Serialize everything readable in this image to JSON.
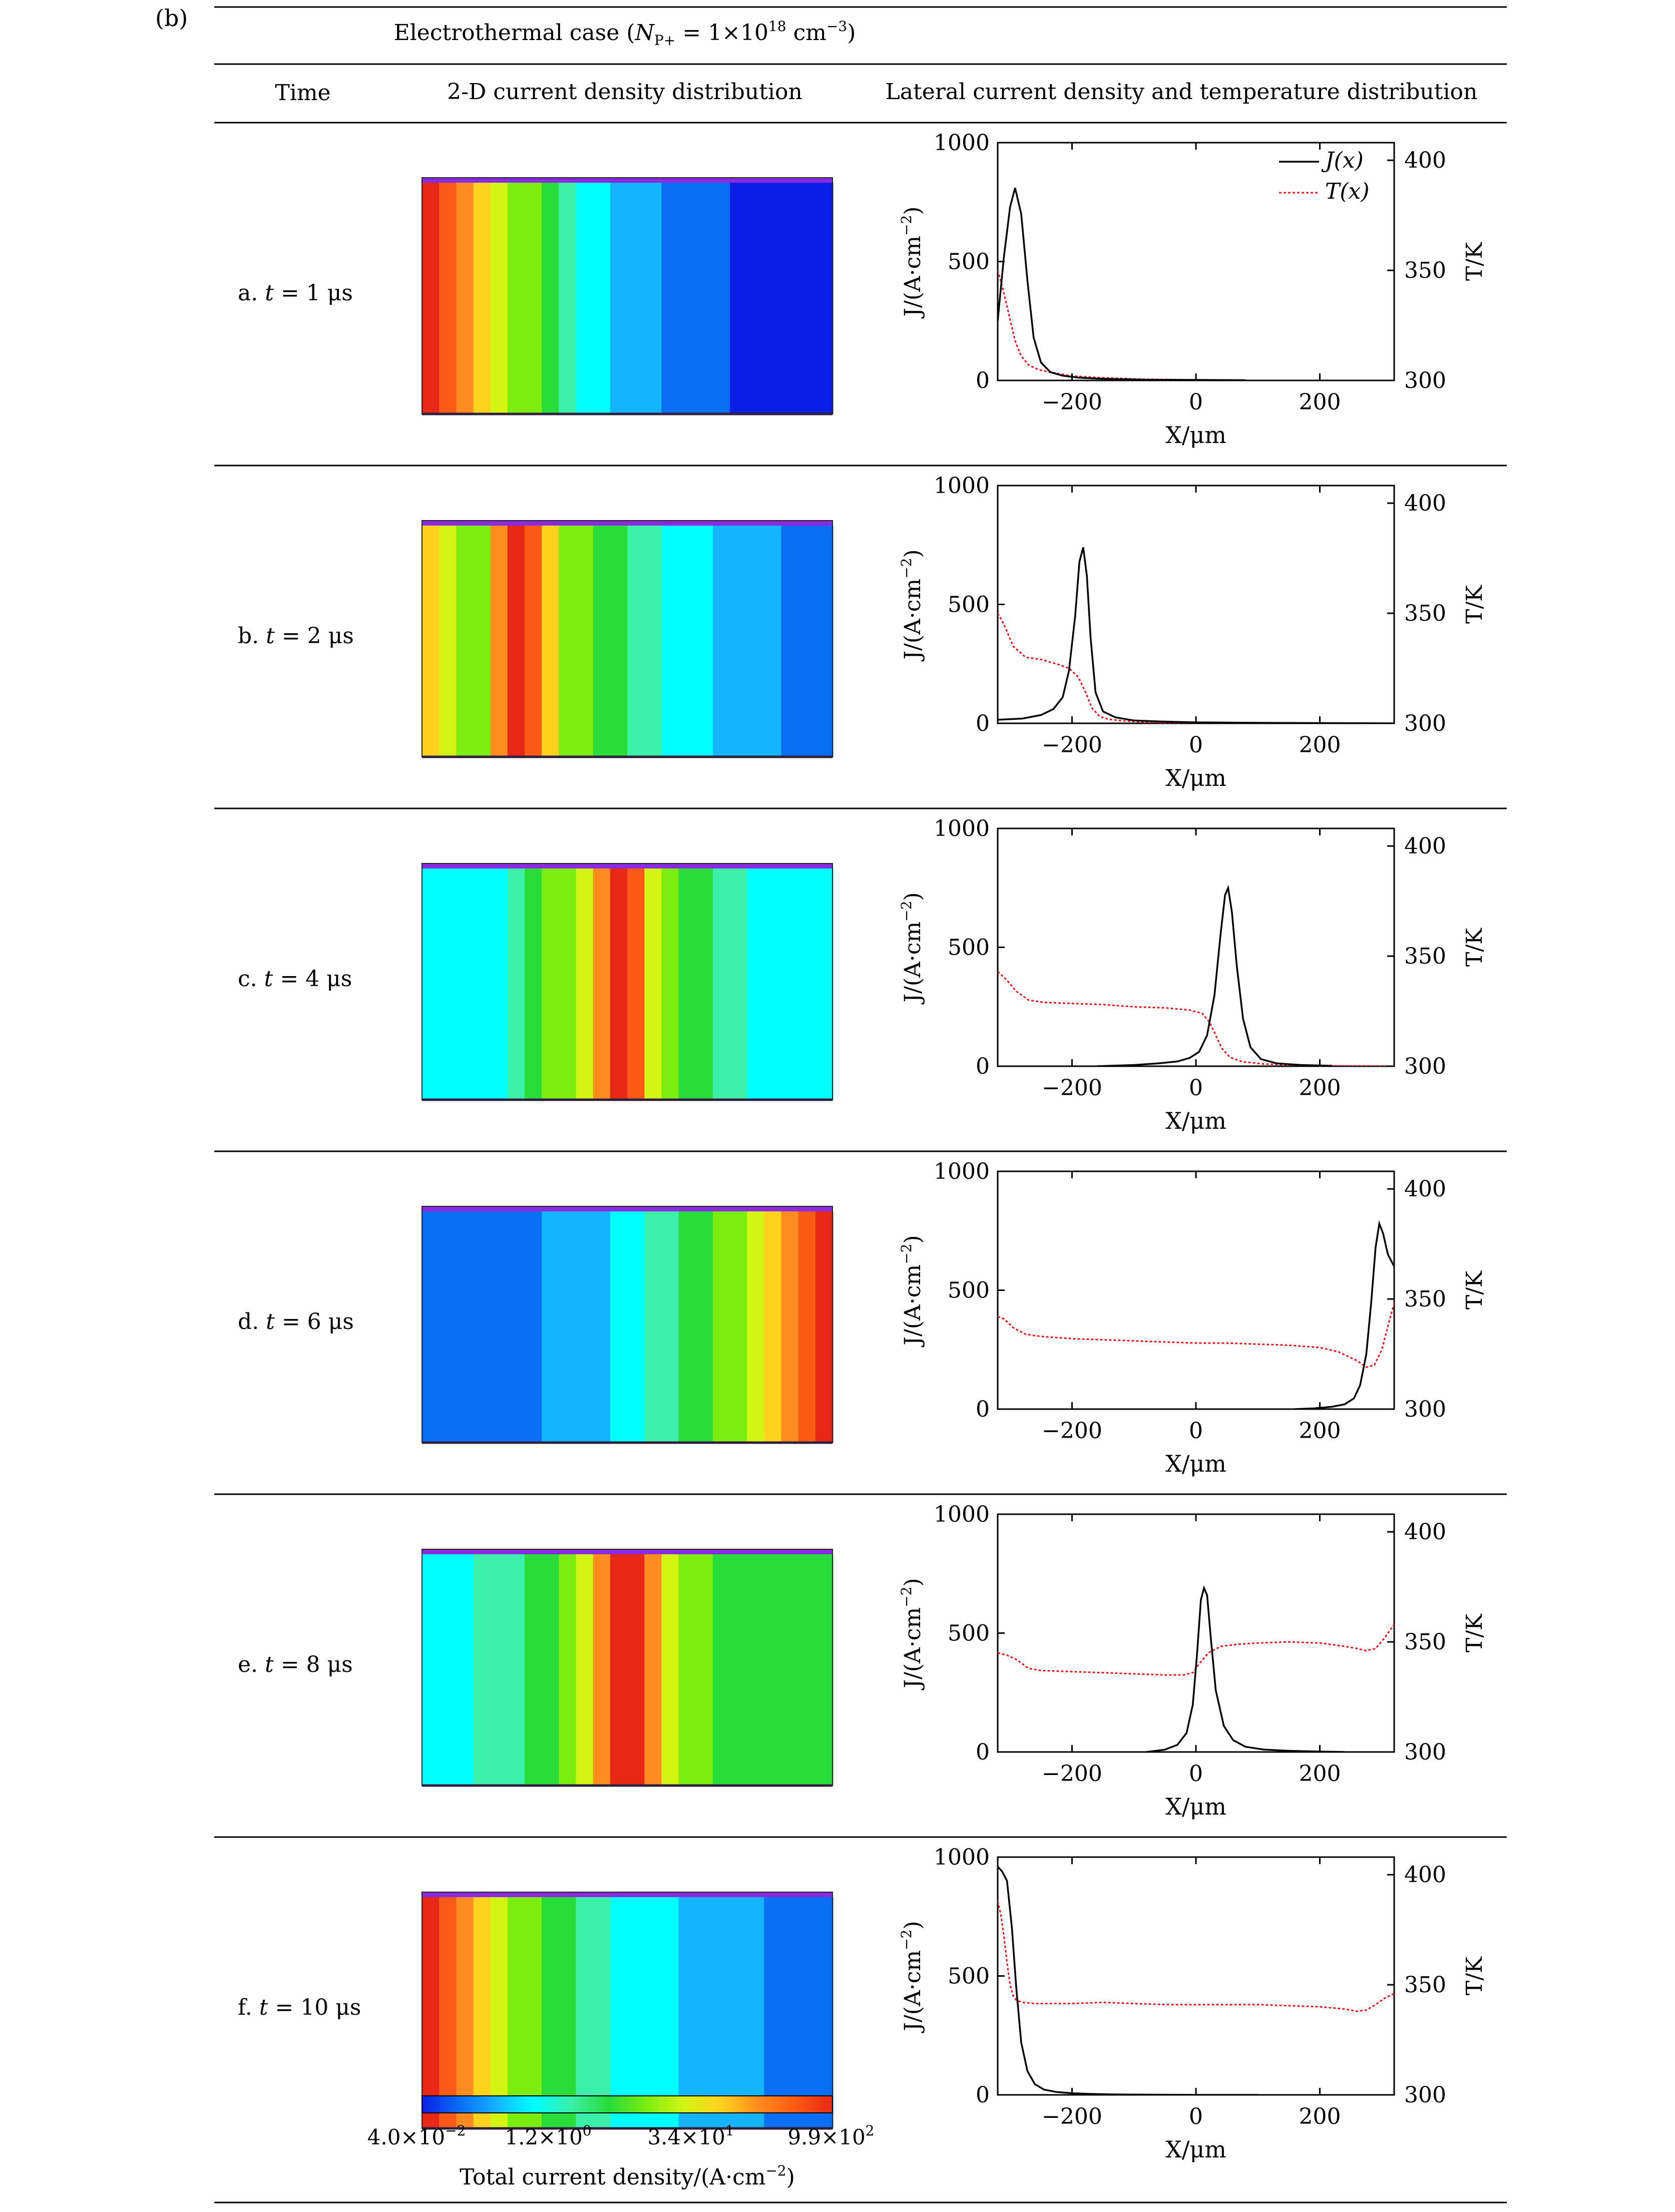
{
  "figure": {
    "panel_label": "(b)",
    "header": {
      "case_prefix": "Electrothermal case (",
      "case_var": "N",
      "case_sub": "P+",
      "case_eq": " = 1×10",
      "case_exp": "18",
      "case_unit": " cm",
      "case_unit_exp": "−3",
      "case_close": ")",
      "col_time": "Time",
      "col_2d": "2-D current density distribution",
      "col_lateral": "Lateral current density and temperature distribution"
    },
    "rows": [
      {
        "prefix": "a.",
        "var": "t",
        "eq": " = 1 μs"
      },
      {
        "prefix": "b.",
        "var": "t",
        "eq": " = 2 μs"
      },
      {
        "prefix": "c.",
        "var": "t",
        "eq": " = 4 μs"
      },
      {
        "prefix": "d.",
        "var": "t",
        "eq": " = 6 μs"
      },
      {
        "prefix": "e.",
        "var": "t",
        "eq": " = 8 μs"
      },
      {
        "prefix": "f.",
        "var": "t",
        "eq": " = 10 μs"
      }
    ],
    "colorbar": {
      "tick_labels": [
        "4.0×10",
        "1.2×10",
        "3.4×10",
        "9.9×10"
      ],
      "tick_exps": [
        "−2",
        "0",
        "1",
        "2"
      ],
      "title": "Total current density/(A·cm",
      "title_exp": "−2",
      "title_close": ")"
    },
    "colors": {
      "current_line": "#000000",
      "temperature_line": "#e8121a",
      "colormap": [
        "#0a1ee6",
        "#0a6ef5",
        "#14b4ff",
        "#00ffff",
        "#3cf0aa",
        "#28dc3c",
        "#7ced10",
        "#d2f514",
        "#ffd21e",
        "#ff8c1e",
        "#fa5a14",
        "#e62814"
      ]
    }
  },
  "chart_data": [
    {
      "type": "line",
      "xlabel": "X/μm",
      "ylabel_left": "J/(A·cm",
      "ylabel_left_exp": "−2",
      "ylabel_right": "T/K",
      "xlim": [
        -320,
        320
      ],
      "ylim": [
        0,
        1000
      ],
      "ylim_right": [
        300,
        408
      ],
      "xticks": [
        "−200",
        "0",
        "200"
      ],
      "xtick_values": [
        -200,
        0,
        200
      ],
      "yticks": [
        "0",
        "500",
        "1000"
      ],
      "ytick_values": [
        0,
        500,
        1000
      ],
      "yticks_right": [
        "300",
        "350",
        "400"
      ],
      "ytick_right_values": [
        300,
        350,
        400
      ],
      "legend": {
        "entries": [
          "J(x)",
          "T(x)"
        ],
        "placement": "top-right"
      },
      "series": [
        {
          "name": "J(x)",
          "x": [
            -320,
            -310,
            -300,
            -292,
            -282,
            -272,
            -262,
            -250,
            -235,
            -215,
            -190,
            -160,
            -120,
            -80,
            0,
            80
          ],
          "y": [
            250,
            520,
            730,
            810,
            700,
            420,
            180,
            75,
            35,
            20,
            12,
            8,
            5,
            3,
            2,
            1
          ]
        },
        {
          "name": "T(x)",
          "x": [
            -320,
            -312,
            -302,
            -292,
            -282,
            -270,
            -255,
            -240,
            -220,
            -200,
            -170,
            -130,
            -80,
            0,
            80
          ],
          "y": [
            350,
            342,
            330,
            318,
            311,
            307,
            305,
            304,
            303,
            302,
            301.5,
            301,
            300.5,
            300.3,
            300.1
          ]
        }
      ]
    },
    {
      "type": "line",
      "xlabel": "X/μm",
      "ylabel_left": "J/(A·cm",
      "ylabel_left_exp": "−2",
      "ylabel_right": "T/K",
      "xlim": [
        -320,
        320
      ],
      "ylim": [
        0,
        1000
      ],
      "ylim_right": [
        300,
        408
      ],
      "xticks": [
        "−200",
        "0",
        "200"
      ],
      "xtick_values": [
        -200,
        0,
        200
      ],
      "yticks": [
        "0",
        "500",
        "1000"
      ],
      "ytick_values": [
        0,
        500,
        1000
      ],
      "yticks_right": [
        "300",
        "350",
        "400"
      ],
      "ytick_right_values": [
        300,
        350,
        400
      ],
      "series": [
        {
          "name": "J(x)",
          "x": [
            -320,
            -280,
            -250,
            -230,
            -215,
            -205,
            -195,
            -188,
            -182,
            -176,
            -170,
            -162,
            -150,
            -130,
            -100,
            -60,
            0,
            100,
            200,
            320
          ],
          "y": [
            15,
            20,
            35,
            60,
            110,
            220,
            450,
            680,
            740,
            620,
            360,
            130,
            50,
            25,
            12,
            8,
            4,
            2,
            1,
            0
          ]
        },
        {
          "name": "T(x)",
          "x": [
            -320,
            -310,
            -295,
            -275,
            -250,
            -225,
            -205,
            -190,
            -178,
            -168,
            -155,
            -140,
            -120,
            -100,
            -70,
            -40,
            0,
            100,
            200,
            320
          ],
          "y": [
            350,
            345,
            335,
            330,
            329,
            327,
            325,
            321,
            314,
            307,
            303,
            301.8,
            301.2,
            300.8,
            300.5,
            300.3,
            300.2,
            300.1,
            300,
            300
          ]
        }
      ]
    },
    {
      "type": "line",
      "xlabel": "X/μm",
      "ylabel_left": "J/(A·cm",
      "ylabel_left_exp": "−2",
      "ylabel_right": "T/K",
      "xlim": [
        -320,
        320
      ],
      "ylim": [
        0,
        1000
      ],
      "ylim_right": [
        300,
        408
      ],
      "xticks": [
        "−200",
        "0",
        "200"
      ],
      "xtick_values": [
        -200,
        0,
        200
      ],
      "yticks": [
        "0",
        "500",
        "1000"
      ],
      "ytick_values": [
        0,
        500,
        1000
      ],
      "yticks_right": [
        "300",
        "350",
        "400"
      ],
      "ytick_right_values": [
        300,
        350,
        400
      ],
      "series": [
        {
          "name": "J(x)",
          "x": [
            -160,
            -100,
            -60,
            -30,
            -10,
            5,
            18,
            30,
            40,
            47,
            52,
            58,
            66,
            76,
            88,
            105,
            130,
            170,
            220
          ],
          "y": [
            0,
            5,
            12,
            20,
            35,
            60,
            130,
            300,
            560,
            720,
            750,
            650,
            420,
            200,
            80,
            30,
            12,
            5,
            2
          ]
        },
        {
          "name": "T(x)",
          "x": [
            -320,
            -305,
            -290,
            -270,
            -245,
            -200,
            -150,
            -100,
            -50,
            -10,
            10,
            22,
            32,
            42,
            55,
            75,
            110,
            170,
            250,
            320
          ],
          "y": [
            343,
            339,
            334,
            330,
            329,
            328.5,
            328,
            327,
            326.5,
            325.5,
            324,
            320,
            314,
            308,
            304,
            302,
            301,
            300.4,
            300.1,
            300
          ]
        }
      ]
    },
    {
      "type": "line",
      "xlabel": "X/μm",
      "ylabel_left": "J/(A·cm",
      "ylabel_left_exp": "−2",
      "ylabel_right": "T/K",
      "xlim": [
        -320,
        320
      ],
      "ylim": [
        0,
        1000
      ],
      "ylim_right": [
        300,
        408
      ],
      "xticks": [
        "−200",
        "0",
        "200"
      ],
      "xtick_values": [
        -200,
        0,
        200
      ],
      "yticks": [
        "0",
        "500",
        "1000"
      ],
      "ytick_values": [
        0,
        500,
        1000
      ],
      "yticks_right": [
        "300",
        "350",
        "400"
      ],
      "ytick_right_values": [
        300,
        350,
        400
      ],
      "series": [
        {
          "name": "J(x)",
          "x": [
            160,
            190,
            220,
            240,
            255,
            265,
            275,
            283,
            290,
            296,
            302,
            310,
            320
          ],
          "y": [
            0,
            3,
            10,
            20,
            45,
            100,
            230,
            450,
            680,
            780,
            740,
            650,
            600
          ]
        },
        {
          "name": "T(x)",
          "x": [
            -320,
            -310,
            -295,
            -275,
            -250,
            -200,
            -150,
            -100,
            -50,
            0,
            50,
            100,
            150,
            200,
            230,
            260,
            275,
            288,
            300,
            312,
            320
          ],
          "y": [
            342,
            341,
            337,
            334,
            333,
            332,
            331.5,
            331,
            330.5,
            330,
            330,
            329.5,
            329,
            328,
            326,
            322,
            319,
            320,
            327,
            340,
            348
          ]
        }
      ]
    },
    {
      "type": "line",
      "xlabel": "X/μm",
      "ylabel_left": "J/(A·cm",
      "ylabel_left_exp": "−2",
      "ylabel_right": "T/K",
      "xlim": [
        -320,
        320
      ],
      "ylim": [
        0,
        1000
      ],
      "ylim_right": [
        300,
        408
      ],
      "xticks": [
        "−200",
        "0",
        "200"
      ],
      "xtick_values": [
        -200,
        0,
        200
      ],
      "yticks": [
        "0",
        "500",
        "1000"
      ],
      "ytick_values": [
        0,
        500,
        1000
      ],
      "yticks_right": [
        "300",
        "350",
        "400"
      ],
      "ytick_right_values": [
        300,
        350,
        400
      ],
      "series": [
        {
          "name": "J(x)",
          "x": [
            -80,
            -50,
            -30,
            -15,
            -5,
            2,
            8,
            13,
            18,
            24,
            32,
            45,
            60,
            80,
            110,
            150,
            200,
            240
          ],
          "y": [
            0,
            10,
            30,
            80,
            200,
            420,
            640,
            690,
            660,
            480,
            260,
            110,
            50,
            22,
            10,
            5,
            2,
            0
          ]
        },
        {
          "name": "T(x)",
          "x": [
            -320,
            -305,
            -290,
            -270,
            -250,
            -200,
            -150,
            -100,
            -50,
            -20,
            -5,
            5,
            20,
            40,
            70,
            100,
            150,
            200,
            240,
            260,
            275,
            290,
            305,
            320
          ],
          "y": [
            345,
            344,
            342,
            338,
            337,
            336.5,
            336,
            335.5,
            335,
            335,
            336,
            340,
            345,
            348,
            349,
            349.5,
            350,
            349.5,
            348,
            347,
            346,
            347,
            352,
            358
          ]
        }
      ]
    },
    {
      "type": "line",
      "xlabel": "X/μm",
      "ylabel_left": "J/(A·cm",
      "ylabel_left_exp": "−2",
      "ylabel_right": "T/K",
      "xlim": [
        -320,
        320
      ],
      "ylim": [
        0,
        1000
      ],
      "ylim_right": [
        300,
        408
      ],
      "xticks": [
        "−200",
        "0",
        "200"
      ],
      "xtick_values": [
        -200,
        0,
        200
      ],
      "yticks": [
        "0",
        "500",
        "1000"
      ],
      "ytick_values": [
        0,
        500,
        1000
      ],
      "yticks_right": [
        "300",
        "350",
        "400"
      ],
      "ytick_right_values": [
        300,
        350,
        400
      ],
      "series": [
        {
          "name": "J(x)",
          "x": [
            -320,
            -313,
            -305,
            -297,
            -290,
            -282,
            -272,
            -260,
            -245,
            -225,
            -200,
            -170,
            -130,
            -80,
            0,
            100
          ],
          "y": [
            960,
            940,
            900,
            700,
            450,
            220,
            100,
            45,
            22,
            12,
            7,
            4,
            2,
            1,
            0,
            0
          ]
        },
        {
          "name": "T(x)",
          "x": [
            -320,
            -315,
            -310,
            -305,
            -300,
            -295,
            -290,
            -280,
            -260,
            -200,
            -150,
            -100,
            -50,
            0,
            50,
            100,
            150,
            200,
            240,
            260,
            275,
            290,
            305,
            320
          ],
          "y": [
            388,
            382,
            372,
            360,
            350,
            345,
            343,
            342,
            341.5,
            341.5,
            342,
            341.5,
            341,
            341,
            341,
            341,
            340.5,
            340,
            339,
            338,
            338.5,
            341,
            344,
            346
          ]
        }
      ]
    }
  ]
}
